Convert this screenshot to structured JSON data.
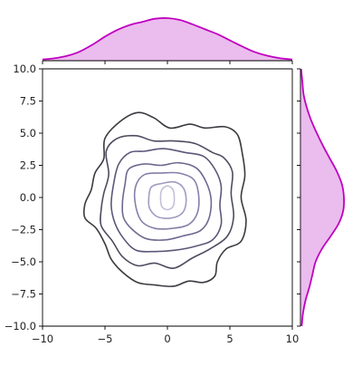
{
  "chart_data": {
    "type": "kde-jointplot",
    "title": "",
    "xlabel": "",
    "ylabel": "",
    "xlim": [
      -10,
      10
    ],
    "ylim": [
      -10,
      10
    ],
    "x_ticks": [
      -10,
      -5,
      0,
      5,
      10
    ],
    "x_tick_labels": [
      "−10",
      "−5",
      "0",
      "5",
      "10"
    ],
    "y_ticks": [
      -10,
      -7.5,
      -5,
      -2.5,
      0,
      2.5,
      5,
      7.5,
      10
    ],
    "y_tick_labels": [
      "−10.0",
      "−7.5",
      "−5.0",
      "−2.5",
      "0.0",
      "2.5",
      "5.0",
      "7.5",
      "10.0"
    ],
    "grid": false,
    "contours": [
      {
        "level": 1,
        "color": "#3a3a40",
        "points": [
          [
            -6.6,
            -1.6
          ],
          [
            -6.6,
            -0.5
          ],
          [
            -6.1,
            0.6
          ],
          [
            -5.8,
            1.9
          ],
          [
            -5.1,
            3.0
          ],
          [
            -5.0,
            4.6
          ],
          [
            -3.8,
            5.9
          ],
          [
            -2.4,
            6.6
          ],
          [
            -1.1,
            6.2
          ],
          [
            0.2,
            5.4
          ],
          [
            1.8,
            5.7
          ],
          [
            3.0,
            5.4
          ],
          [
            4.6,
            5.5
          ],
          [
            5.6,
            4.9
          ],
          [
            6.0,
            3.4
          ],
          [
            6.2,
            1.7
          ],
          [
            5.9,
            0.0
          ],
          [
            6.3,
            -1.8
          ],
          [
            5.9,
            -3.4
          ],
          [
            4.7,
            -4.0
          ],
          [
            4.0,
            -5.0
          ],
          [
            3.8,
            -6.1
          ],
          [
            2.9,
            -6.6
          ],
          [
            1.7,
            -6.5
          ],
          [
            0.5,
            -6.9
          ],
          [
            -1.0,
            -6.8
          ],
          [
            -2.4,
            -6.6
          ],
          [
            -3.6,
            -5.8
          ],
          [
            -4.5,
            -4.8
          ],
          [
            -5.0,
            -3.6
          ],
          [
            -5.7,
            -2.4
          ]
        ]
      },
      {
        "level": 2,
        "color": "#4e4c60",
        "points": [
          [
            -5.3,
            -0.9
          ],
          [
            -5.1,
            0.3
          ],
          [
            -4.7,
            1.8
          ],
          [
            -4.9,
            3.6
          ],
          [
            -4.0,
            4.6
          ],
          [
            -2.5,
            4.8
          ],
          [
            -1.1,
            4.4
          ],
          [
            0.5,
            4.4
          ],
          [
            2.2,
            4.2
          ],
          [
            3.6,
            3.5
          ],
          [
            4.5,
            3.1
          ],
          [
            5.2,
            2.0
          ],
          [
            5.1,
            0.3
          ],
          [
            5.3,
            -1.5
          ],
          [
            4.8,
            -3.0
          ],
          [
            3.4,
            -4.0
          ],
          [
            2.0,
            -4.7
          ],
          [
            0.5,
            -5.5
          ],
          [
            -1.0,
            -5.1
          ],
          [
            -2.4,
            -5.3
          ],
          [
            -3.6,
            -4.6
          ],
          [
            -4.4,
            -3.4
          ],
          [
            -5.3,
            -2.2
          ]
        ]
      },
      {
        "level": 3,
        "color": "#5a5878",
        "points": [
          [
            -4.5,
            -0.6
          ],
          [
            -4.3,
            1.1
          ],
          [
            -3.9,
            2.6
          ],
          [
            -3.0,
            3.5
          ],
          [
            -1.8,
            3.6
          ],
          [
            -0.3,
            3.8
          ],
          [
            1.4,
            3.5
          ],
          [
            2.9,
            3.2
          ],
          [
            3.8,
            2.2
          ],
          [
            4.3,
            0.9
          ],
          [
            4.2,
            -0.6
          ],
          [
            4.3,
            -2.1
          ],
          [
            3.6,
            -3.3
          ],
          [
            2.2,
            -3.8
          ],
          [
            0.6,
            -4.1
          ],
          [
            -1.0,
            -4.2
          ],
          [
            -2.5,
            -4.1
          ],
          [
            -3.5,
            -3.2
          ],
          [
            -4.2,
            -2.0
          ]
        ]
      },
      {
        "level": 4,
        "color": "#6d6a90",
        "points": [
          [
            -3.6,
            -0.4
          ],
          [
            -3.4,
            1.0
          ],
          [
            -3.1,
            2.2
          ],
          [
            -1.9,
            2.6
          ],
          [
            -0.5,
            2.5
          ],
          [
            0.9,
            2.7
          ],
          [
            2.3,
            2.3
          ],
          [
            3.1,
            1.2
          ],
          [
            3.5,
            -0.2
          ],
          [
            3.3,
            -1.7
          ],
          [
            2.6,
            -2.6
          ],
          [
            1.2,
            -3.0
          ],
          [
            -0.2,
            -3.3
          ],
          [
            -1.7,
            -3.2
          ],
          [
            -2.8,
            -2.5
          ],
          [
            -3.5,
            -1.6
          ]
        ]
      },
      {
        "level": 5,
        "color": "#8480a8",
        "points": [
          [
            -2.6,
            -0.3
          ],
          [
            -2.5,
            1.0
          ],
          [
            -1.8,
            1.8
          ],
          [
            -0.5,
            1.9
          ],
          [
            0.9,
            1.9
          ],
          [
            2.1,
            1.4
          ],
          [
            2.5,
            0.2
          ],
          [
            2.4,
            -1.2
          ],
          [
            1.7,
            -2.1
          ],
          [
            0.4,
            -2.4
          ],
          [
            -1.0,
            -2.4
          ],
          [
            -2.1,
            -1.8
          ]
        ]
      },
      {
        "level": 6,
        "color": "#a19cc0",
        "points": [
          [
            -1.5,
            -0.2
          ],
          [
            -1.3,
            0.8
          ],
          [
            -0.4,
            1.1
          ],
          [
            0.6,
            1.2
          ],
          [
            1.3,
            0.7
          ],
          [
            1.5,
            -0.3
          ],
          [
            1.2,
            -1.2
          ],
          [
            0.3,
            -1.6
          ],
          [
            -0.8,
            -1.5
          ],
          [
            -1.4,
            -0.9
          ]
        ]
      },
      {
        "level": 7,
        "color": "#c4c0d8",
        "points": [
          [
            -0.55,
            0.0
          ],
          [
            -0.45,
            0.6
          ],
          [
            0.0,
            0.9
          ],
          [
            0.45,
            0.6
          ],
          [
            0.55,
            -0.1
          ],
          [
            0.45,
            -0.7
          ],
          [
            0.0,
            -0.95
          ],
          [
            -0.45,
            -0.7
          ]
        ]
      }
    ],
    "marginal_x": {
      "color": "#c000c0",
      "fill_color": "#ebbcee",
      "x": [
        -10,
        -9,
        -8,
        -7,
        -6,
        -5,
        -4,
        -3,
        -2,
        -1,
        0,
        1,
        2,
        3,
        4,
        5,
        6,
        7,
        8,
        9,
        10
      ],
      "density": [
        0.002,
        0.004,
        0.008,
        0.015,
        0.026,
        0.039,
        0.05,
        0.058,
        0.063,
        0.068,
        0.069,
        0.066,
        0.059,
        0.051,
        0.043,
        0.033,
        0.023,
        0.014,
        0.008,
        0.004,
        0.002
      ]
    },
    "marginal_y": {
      "color": "#c000c0",
      "fill_color": "#ebbcee",
      "y": [
        -10,
        -9,
        -8,
        -7,
        -6,
        -5,
        -4,
        -3,
        -2,
        -1,
        0,
        1,
        2,
        3,
        4,
        5,
        6,
        7,
        8,
        9,
        10
      ],
      "density": [
        0.002,
        0.004,
        0.008,
        0.014,
        0.019,
        0.024,
        0.034,
        0.048,
        0.061,
        0.068,
        0.069,
        0.066,
        0.058,
        0.047,
        0.036,
        0.026,
        0.017,
        0.01,
        0.005,
        0.003,
        0.001
      ]
    }
  }
}
